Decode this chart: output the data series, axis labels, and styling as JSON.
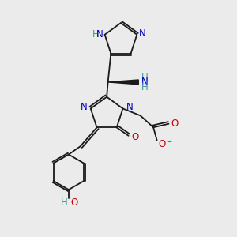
{
  "bg_color": "#ebebeb",
  "bond_color": "#1a1a1a",
  "N_color": "#0000cc",
  "O_color": "#cc0000",
  "NH_color": "#3d9999",
  "lw": 1.3,
  "font_size": 8.5,
  "xlim": [
    0,
    10
  ],
  "ylim": [
    0,
    10
  ]
}
